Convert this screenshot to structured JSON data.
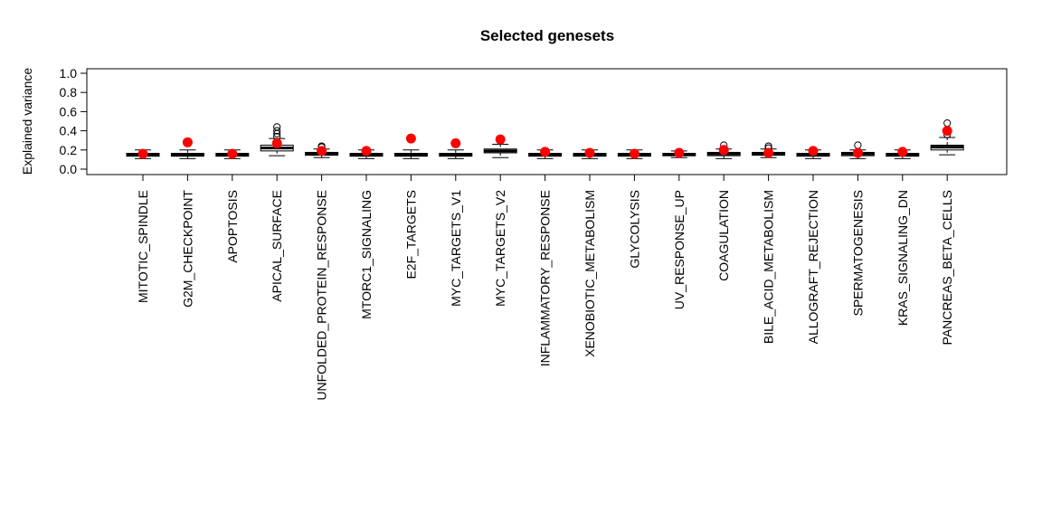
{
  "chart_data": {
    "type": "boxplot",
    "title": "Selected genesets",
    "xlabel": "",
    "ylabel": "Explained variance",
    "ylim": [
      0,
      1.0
    ],
    "yticks": [
      "0.0",
      "0.2",
      "0.4",
      "0.6",
      "0.8",
      "1.0"
    ],
    "grid": false,
    "colors": {
      "box": "#000000",
      "box_fill": "#ffffff",
      "point": "#ff0000",
      "outlier": "#000000"
    },
    "categories": [
      "MITOTIC_SPINDLE",
      "G2M_CHECKPOINT",
      "APOPTOSIS",
      "APICAL_SURFACE",
      "UNFOLDED_PROTEIN_RESPONSE",
      "MTORC1_SIGNALING",
      "E2F_TARGETS",
      "MYC_TARGETS_V1",
      "MYC_TARGETS_V2",
      "INFLAMMATORY_RESPONSE",
      "XENOBIOTIC_METABOLISM",
      "GLYCOLYSIS",
      "UV_RESPONSE_UP",
      "COAGULATION",
      "BILE_ACID_METABOLISM",
      "ALLOGRAFT_REJECTION",
      "SPERMATOGENESIS",
      "KRAS_SIGNALING_DN",
      "PANCREAS_BETA_CELLS"
    ],
    "boxes": [
      {
        "min": 0.11,
        "q1": 0.135,
        "median": 0.15,
        "q3": 0.165,
        "max": 0.2,
        "outliers": []
      },
      {
        "min": 0.11,
        "q1": 0.135,
        "median": 0.15,
        "q3": 0.165,
        "max": 0.2,
        "outliers": []
      },
      {
        "min": 0.11,
        "q1": 0.135,
        "median": 0.15,
        "q3": 0.165,
        "max": 0.2,
        "outliers": []
      },
      {
        "min": 0.14,
        "q1": 0.19,
        "median": 0.22,
        "q3": 0.25,
        "max": 0.32,
        "outliers": [
          0.34,
          0.37,
          0.4,
          0.44
        ]
      },
      {
        "min": 0.12,
        "q1": 0.145,
        "median": 0.16,
        "q3": 0.175,
        "max": 0.21,
        "outliers": [
          0.23,
          0.24
        ]
      },
      {
        "min": 0.11,
        "q1": 0.135,
        "median": 0.15,
        "q3": 0.165,
        "max": 0.2,
        "outliers": []
      },
      {
        "min": 0.11,
        "q1": 0.135,
        "median": 0.15,
        "q3": 0.165,
        "max": 0.2,
        "outliers": []
      },
      {
        "min": 0.11,
        "q1": 0.135,
        "median": 0.15,
        "q3": 0.165,
        "max": 0.2,
        "outliers": []
      },
      {
        "min": 0.12,
        "q1": 0.17,
        "median": 0.19,
        "q3": 0.21,
        "max": 0.26,
        "outliers": [
          0.29
        ]
      },
      {
        "min": 0.11,
        "q1": 0.135,
        "median": 0.15,
        "q3": 0.165,
        "max": 0.2,
        "outliers": []
      },
      {
        "min": 0.11,
        "q1": 0.135,
        "median": 0.15,
        "q3": 0.165,
        "max": 0.2,
        "outliers": []
      },
      {
        "min": 0.11,
        "q1": 0.135,
        "median": 0.15,
        "q3": 0.165,
        "max": 0.2,
        "outliers": []
      },
      {
        "min": 0.12,
        "q1": 0.14,
        "median": 0.15,
        "q3": 0.165,
        "max": 0.19,
        "outliers": []
      },
      {
        "min": 0.11,
        "q1": 0.14,
        "median": 0.16,
        "q3": 0.175,
        "max": 0.21,
        "outliers": [
          0.25
        ]
      },
      {
        "min": 0.12,
        "q1": 0.145,
        "median": 0.16,
        "q3": 0.175,
        "max": 0.21,
        "outliers": [
          0.22,
          0.24
        ]
      },
      {
        "min": 0.11,
        "q1": 0.135,
        "median": 0.15,
        "q3": 0.165,
        "max": 0.2,
        "outliers": []
      },
      {
        "min": 0.11,
        "q1": 0.14,
        "median": 0.16,
        "q3": 0.175,
        "max": 0.2,
        "outliers": [
          0.25
        ]
      },
      {
        "min": 0.11,
        "q1": 0.135,
        "median": 0.15,
        "q3": 0.165,
        "max": 0.2,
        "outliers": []
      },
      {
        "min": 0.15,
        "q1": 0.2,
        "median": 0.23,
        "q3": 0.25,
        "max": 0.33,
        "outliers": [
          0.36,
          0.48
        ]
      }
    ],
    "points": [
      0.16,
      0.28,
      0.16,
      0.27,
      0.19,
      0.19,
      0.32,
      0.27,
      0.31,
      0.18,
      0.17,
      0.16,
      0.17,
      0.2,
      0.17,
      0.19,
      0.17,
      0.18,
      0.4
    ]
  }
}
